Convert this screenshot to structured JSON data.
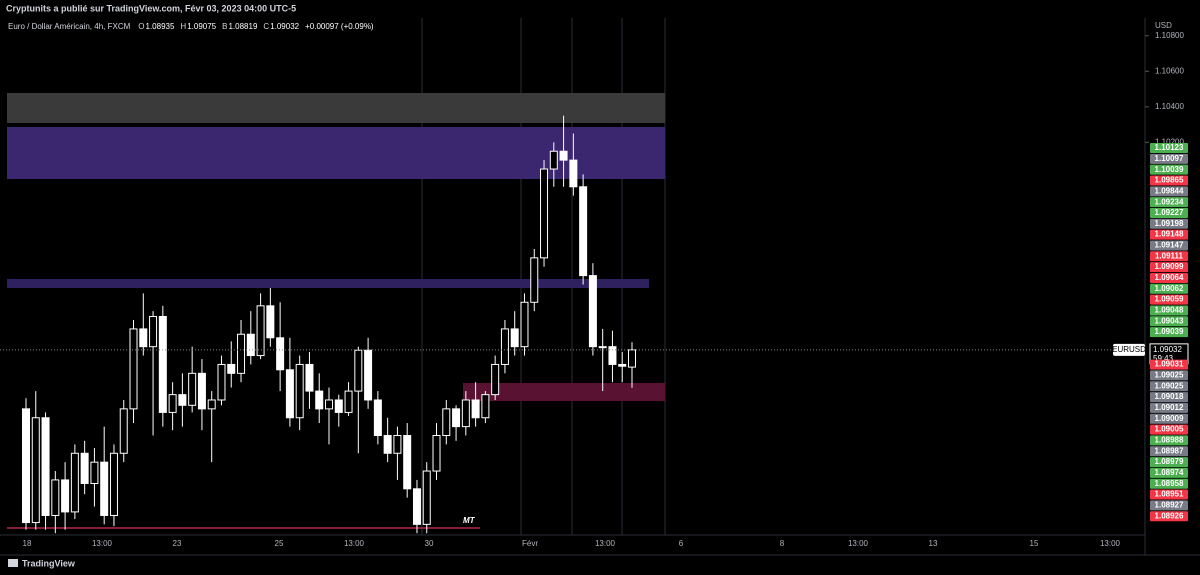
{
  "header": {
    "text": "Cryptunits a publié sur TradingView.com, Févr 03, 2023 04:00 UTC-5"
  },
  "legend": {
    "symbol": "Euro / Dollar Américain, 4h, FXCM",
    "fields": [
      {
        "key": "O",
        "value": "1.08935"
      },
      {
        "key": "H",
        "value": "1.09075"
      },
      {
        "key": "B",
        "value": "1.08819"
      },
      {
        "key": "C",
        "value": "1.09032"
      }
    ],
    "change": "+0.00097 (+0.09%)"
  },
  "annotation": "MT",
  "footer": {
    "brand": "TradingView"
  },
  "chart_data": {
    "type": "candlestick",
    "currency": "USD",
    "ylim": [
      1.0799,
      1.109
    ],
    "yticks": [
      {
        "value": 1.108,
        "label": "1.10800"
      },
      {
        "value": 1.106,
        "label": "1.10600"
      },
      {
        "value": 1.104,
        "label": "1.10400"
      },
      {
        "value": 1.102,
        "label": "1.10200"
      }
    ],
    "up_color": "#000000",
    "down_color": "#ffffff",
    "current": {
      "symbol": "EURUSD",
      "price": 1.09032,
      "countdown": "59:43"
    },
    "x_labels": [
      "18",
      "13:00",
      "23",
      "25",
      "13:00",
      "30",
      "Févr",
      "13:00",
      "6",
      "8",
      "13:00",
      "13",
      "15",
      "13:00"
    ],
    "price_labels": [
      {
        "text": "1.10123",
        "color": "#4caf50"
      },
      {
        "text": "1.10097",
        "color": "#787b86"
      },
      {
        "text": "1.10039",
        "color": "#4caf50"
      },
      {
        "text": "1.09865",
        "color": "#f23645"
      },
      {
        "text": "1.09844",
        "color": "#787b86"
      },
      {
        "text": "1.09234",
        "color": "#4caf50"
      },
      {
        "text": "1.09227",
        "color": "#4caf50"
      },
      {
        "text": "1.09198",
        "color": "#787b86"
      },
      {
        "text": "1.09148",
        "color": "#f23645"
      },
      {
        "text": "1.09147",
        "color": "#787b86"
      },
      {
        "text": "1.09111",
        "color": "#f23645"
      },
      {
        "text": "1.09099",
        "color": "#f23645"
      },
      {
        "text": "1.09064",
        "color": "#f23645"
      },
      {
        "text": "1.09062",
        "color": "#4caf50"
      },
      {
        "text": "1.09059",
        "color": "#f23645"
      },
      {
        "text": "1.09048",
        "color": "#4caf50"
      },
      {
        "text": "1.09043",
        "color": "#4caf50"
      },
      {
        "text": "1.09039",
        "color": "#4caf50"
      },
      {
        "text": "1.09031",
        "color": "#f23645"
      },
      {
        "text": "1.09025",
        "color": "#787b86"
      },
      {
        "text": "1.09025",
        "color": "#787b86"
      },
      {
        "text": "1.09018",
        "color": "#787b86"
      },
      {
        "text": "1.09012",
        "color": "#787b86"
      },
      {
        "text": "1.09009",
        "color": "#787b86"
      },
      {
        "text": "1.09005",
        "color": "#f23645"
      },
      {
        "text": "1.08988",
        "color": "#4caf50"
      },
      {
        "text": "1.08987",
        "color": "#787b86"
      },
      {
        "text": "1.08979",
        "color": "#4caf50"
      },
      {
        "text": "1.08974",
        "color": "#4caf50"
      },
      {
        "text": "1.08958",
        "color": "#4caf50"
      },
      {
        "text": "1.08951",
        "color": "#f23645"
      },
      {
        "text": "1.08927",
        "color": "#787b86"
      },
      {
        "text": "1.08926",
        "color": "#f23645"
      }
    ],
    "candles": [
      {
        "open": 1.087,
        "high": 1.0876,
        "low": 1.0802,
        "close": 1.0806
      },
      {
        "open": 1.0806,
        "high": 1.088,
        "low": 1.0802,
        "close": 1.0865
      },
      {
        "open": 1.0865,
        "high": 1.0868,
        "low": 1.0802,
        "close": 1.081
      },
      {
        "open": 1.081,
        "high": 1.0835,
        "low": 1.08,
        "close": 1.083
      },
      {
        "open": 1.083,
        "high": 1.084,
        "low": 1.0802,
        "close": 1.0812
      },
      {
        "open": 1.0812,
        "high": 1.085,
        "low": 1.0808,
        "close": 1.0845
      },
      {
        "open": 1.0845,
        "high": 1.0852,
        "low": 1.0822,
        "close": 1.0828
      },
      {
        "open": 1.0828,
        "high": 1.0848,
        "low": 1.0815,
        "close": 1.084
      },
      {
        "open": 1.084,
        "high": 1.086,
        "low": 1.0805,
        "close": 1.081
      },
      {
        "open": 1.081,
        "high": 1.085,
        "low": 1.0804,
        "close": 1.0845
      },
      {
        "open": 1.0845,
        "high": 1.0875,
        "low": 1.084,
        "close": 1.087
      },
      {
        "open": 1.087,
        "high": 1.092,
        "low": 1.0862,
        "close": 1.0915
      },
      {
        "open": 1.0915,
        "high": 1.0935,
        "low": 1.09,
        "close": 1.0905
      },
      {
        "open": 1.0905,
        "high": 1.0925,
        "low": 1.0855,
        "close": 1.0922
      },
      {
        "open": 1.0922,
        "high": 1.0928,
        "low": 1.086,
        "close": 1.0868
      },
      {
        "open": 1.0868,
        "high": 1.0885,
        "low": 1.0858,
        "close": 1.0878
      },
      {
        "open": 1.0878,
        "high": 1.089,
        "low": 1.086,
        "close": 1.0872
      },
      {
        "open": 1.0872,
        "high": 1.0905,
        "low": 1.0868,
        "close": 1.089
      },
      {
        "open": 1.089,
        "high": 1.0898,
        "low": 1.0858,
        "close": 1.087
      },
      {
        "open": 1.087,
        "high": 1.088,
        "low": 1.084,
        "close": 1.0875
      },
      {
        "open": 1.0875,
        "high": 1.09,
        "low": 1.0872,
        "close": 1.0895
      },
      {
        "open": 1.0895,
        "high": 1.0908,
        "low": 1.0882,
        "close": 1.089
      },
      {
        "open": 1.089,
        "high": 1.092,
        "low": 1.0885,
        "close": 1.0912
      },
      {
        "open": 1.0912,
        "high": 1.0925,
        "low": 1.0895,
        "close": 1.09
      },
      {
        "open": 1.09,
        "high": 1.0935,
        "low": 1.0898,
        "close": 1.0928
      },
      {
        "open": 1.0928,
        "high": 1.0938,
        "low": 1.0905,
        "close": 1.091
      },
      {
        "open": 1.091,
        "high": 1.093,
        "low": 1.088,
        "close": 1.0892
      },
      {
        "open": 1.0892,
        "high": 1.091,
        "low": 1.086,
        "close": 1.0865
      },
      {
        "open": 1.0865,
        "high": 1.09,
        "low": 1.0858,
        "close": 1.0895
      },
      {
        "open": 1.0895,
        "high": 1.0902,
        "low": 1.087,
        "close": 1.088
      },
      {
        "open": 1.088,
        "high": 1.089,
        "low": 1.0862,
        "close": 1.087
      },
      {
        "open": 1.087,
        "high": 1.0882,
        "low": 1.085,
        "close": 1.0875
      },
      {
        "open": 1.0875,
        "high": 1.0878,
        "low": 1.086,
        "close": 1.0868
      },
      {
        "open": 1.0868,
        "high": 1.0885,
        "low": 1.0866,
        "close": 1.088
      },
      {
        "open": 1.088,
        "high": 1.0905,
        "low": 1.0845,
        "close": 1.0903
      },
      {
        "open": 1.0903,
        "high": 1.091,
        "low": 1.087,
        "close": 1.0875
      },
      {
        "open": 1.0875,
        "high": 1.088,
        "low": 1.085,
        "close": 1.0855
      },
      {
        "open": 1.0855,
        "high": 1.0865,
        "low": 1.084,
        "close": 1.0845
      },
      {
        "open": 1.0845,
        "high": 1.086,
        "low": 1.083,
        "close": 1.0855
      },
      {
        "open": 1.0855,
        "high": 1.0862,
        "low": 1.082,
        "close": 1.0825
      },
      {
        "open": 1.0825,
        "high": 1.083,
        "low": 1.08,
        "close": 1.0805
      },
      {
        "open": 1.0805,
        "high": 1.084,
        "low": 1.08,
        "close": 1.0835
      },
      {
        "open": 1.0835,
        "high": 1.0862,
        "low": 1.083,
        "close": 1.0855
      },
      {
        "open": 1.0855,
        "high": 1.0875,
        "low": 1.085,
        "close": 1.087
      },
      {
        "open": 1.087,
        "high": 1.0872,
        "low": 1.0852,
        "close": 1.086
      },
      {
        "open": 1.086,
        "high": 1.088,
        "low": 1.0855,
        "close": 1.0875
      },
      {
        "open": 1.0875,
        "high": 1.0885,
        "low": 1.086,
        "close": 1.0865
      },
      {
        "open": 1.0865,
        "high": 1.088,
        "low": 1.0862,
        "close": 1.0878
      },
      {
        "open": 1.0878,
        "high": 1.09,
        "low": 1.0875,
        "close": 1.0895
      },
      {
        "open": 1.0895,
        "high": 1.092,
        "low": 1.089,
        "close": 1.0915
      },
      {
        "open": 1.0915,
        "high": 1.0925,
        "low": 1.09,
        "close": 1.0905
      },
      {
        "open": 1.0905,
        "high": 1.0935,
        "low": 1.09,
        "close": 1.093
      },
      {
        "open": 1.093,
        "high": 1.096,
        "low": 1.0925,
        "close": 1.0955
      },
      {
        "open": 1.0955,
        "high": 1.101,
        "low": 1.095,
        "close": 1.1005
      },
      {
        "open": 1.1005,
        "high": 1.102,
        "low": 1.0995,
        "close": 1.1015
      },
      {
        "open": 1.1015,
        "high": 1.1035,
        "low": 1.0995,
        "close": 1.101
      },
      {
        "open": 1.101,
        "high": 1.1025,
        "low": 1.099,
        "close": 1.0995
      },
      {
        "open": 1.0995,
        "high": 1.1002,
        "low": 1.094,
        "close": 1.0945
      },
      {
        "open": 1.0945,
        "high": 1.0952,
        "low": 1.09,
        "close": 1.0905
      },
      {
        "open": 1.0905,
        "high": 1.0915,
        "low": 1.088,
        "close": 1.0905
      },
      {
        "open": 1.0905,
        "high": 1.0914,
        "low": 1.0885,
        "close": 1.0895
      },
      {
        "open": 1.0895,
        "high": 1.0902,
        "low": 1.0885,
        "close": 1.0894
      },
      {
        "open": 1.08935,
        "high": 1.09075,
        "low": 1.08819,
        "close": 1.09032
      }
    ]
  }
}
